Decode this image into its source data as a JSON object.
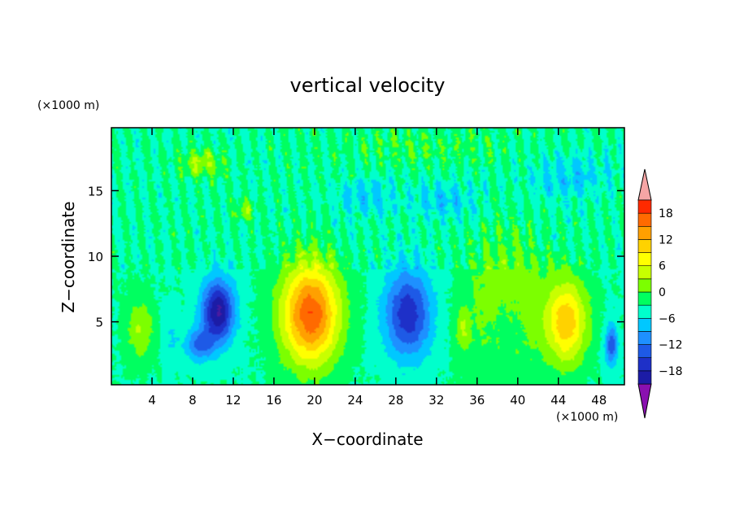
{
  "chart_data": {
    "type": "heatmap",
    "title": "vertical velocity",
    "xlabel": "X−coordinate",
    "ylabel": "Z−coordinate",
    "x_unit": "(×1000 m)",
    "y_unit": "(×1000 m)",
    "xlim": [
      0,
      50.5
    ],
    "ylim": [
      0.2,
      19.8
    ],
    "x_ticks": [
      4,
      8,
      12,
      16,
      20,
      24,
      28,
      32,
      36,
      40,
      44,
      48
    ],
    "x_tick_labels": [
      "4",
      "8",
      "12",
      "16",
      "20",
      "24",
      "28",
      "32",
      "36",
      "40",
      "44",
      "48"
    ],
    "y_ticks": [
      5,
      10,
      15
    ],
    "y_tick_labels": [
      "5",
      "10",
      "15"
    ],
    "grid": false,
    "colorbar": {
      "label_values": [
        18,
        12,
        6,
        0,
        -6,
        -12,
        -18
      ],
      "label_texts": [
        "18",
        "12",
        "6",
        "0",
        "−6",
        "−12",
        "−18"
      ],
      "levels": [
        -21,
        -18,
        -15,
        -12,
        -9,
        -6,
        -3,
        0,
        3,
        6,
        9,
        12,
        15,
        18,
        21
      ],
      "extend": "both",
      "colors": [
        "#7a0fa8",
        "#4b1aa0",
        "#1c1ca6",
        "#1e30c8",
        "#1e5ae6",
        "#1e90ff",
        "#00c8ff",
        "#00ffcc",
        "#00ff60",
        "#7cff00",
        "#c8ff00",
        "#ffff00",
        "#ffd200",
        "#ffa000",
        "#ff6a00",
        "#ff2a00",
        "#ff3c3c",
        "#f5a5a5"
      ],
      "over_color": "#f5a5a5",
      "under_color": "#8a10b0"
    },
    "cells": [
      {
        "x": 2.8,
        "z": 4.5,
        "sx": 1.4,
        "sz": 2.4,
        "a": 6
      },
      {
        "x": 5.8,
        "z": 4.0,
        "sx": 0.8,
        "sz": 2.0,
        "a": -3
      },
      {
        "x": 10.5,
        "z": 5.8,
        "sx": 1.6,
        "sz": 2.4,
        "a": -18
      },
      {
        "x": 8.6,
        "z": 3.2,
        "sx": 1.4,
        "sz": 1.2,
        "a": -9
      },
      {
        "x": 19.6,
        "z": 5.6,
        "sx": 2.8,
        "sz": 3.8,
        "a": 21
      },
      {
        "x": 29.2,
        "z": 5.6,
        "sx": 2.3,
        "sz": 3.3,
        "a": -14
      },
      {
        "x": 34.6,
        "z": 4.4,
        "sx": 0.7,
        "sz": 1.6,
        "a": 5
      },
      {
        "x": 38.8,
        "z": 5.4,
        "sx": 2.2,
        "sz": 3.2,
        "a": -5
      },
      {
        "x": 38.8,
        "z": 6.2,
        "sx": 3.6,
        "sz": 5.0,
        "a": 8
      },
      {
        "x": 44.8,
        "z": 5.0,
        "sx": 2.0,
        "sz": 3.2,
        "a": 14
      },
      {
        "x": 49.2,
        "z": 3.2,
        "sx": 0.6,
        "sz": 1.6,
        "a": -11
      },
      {
        "x": 8.8,
        "z": 17.1,
        "sx": 2.2,
        "sz": 1.0,
        "a": 6
      },
      {
        "x": 13.0,
        "z": 13.5,
        "sx": 1.0,
        "sz": 0.8,
        "a": 5
      },
      {
        "x": 25.0,
        "z": 14.5,
        "sx": 3.2,
        "sz": 1.4,
        "a": -4
      },
      {
        "x": 33.0,
        "z": 14.2,
        "sx": 3.0,
        "sz": 1.4,
        "a": -4
      },
      {
        "x": 45.0,
        "z": 16.0,
        "sx": 4.0,
        "sz": 1.8,
        "a": -4
      },
      {
        "x": 30.0,
        "z": 18.3,
        "sx": 10.0,
        "sz": 1.6,
        "a": 2
      }
    ],
    "background_value": -3.2
  }
}
